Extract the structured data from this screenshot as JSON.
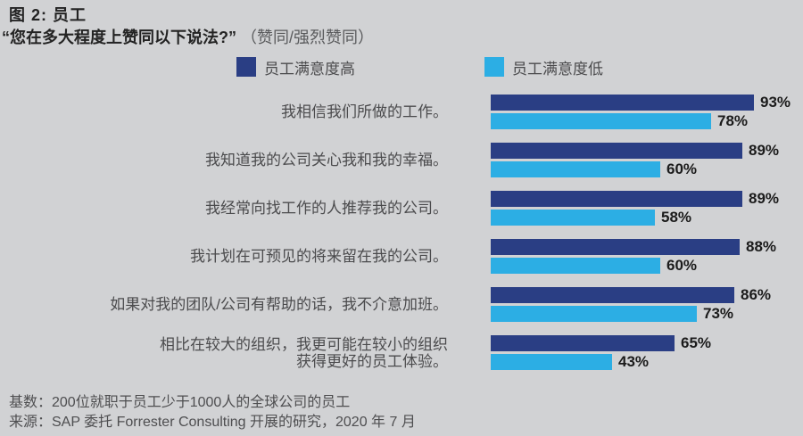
{
  "figure": {
    "title": "图 2: 员工",
    "subtitle_quote": "“您在多大程度上赞同以下说法?”",
    "subtitle_note": "（赞同/强烈赞同）"
  },
  "legend": [
    {
      "key": "high",
      "label": "员工满意度高",
      "color": "#2a3e84"
    },
    {
      "key": "low",
      "label": "员工满意度低",
      "color": "#2caee4"
    }
  ],
  "chart_data": {
    "type": "bar",
    "orientation": "horizontal",
    "title": "图 2: 员工",
    "subtitle": "“您在多大程度上赞同以下说法?” （赞同/强烈赞同）",
    "xlim": [
      0,
      100
    ],
    "value_suffix": "%",
    "grid": false,
    "legend_position": "top",
    "categories": [
      "我相信我们所做的工作。",
      "我知道我的公司关心我和我的幸福。",
      "我经常向找工作的人推荐我的公司。",
      "我计划在可预见的将来留在我的公司。",
      "如果对我的团队/公司有帮助的话，我不介意加班。",
      "相比在较大的组织，我更可能在较小的组织\n获得更好的员工体验。"
    ],
    "series": [
      {
        "key": "high",
        "name": "员工满意度高",
        "color": "#2a3e84",
        "values": [
          93,
          89,
          89,
          88,
          86,
          65
        ]
      },
      {
        "key": "low",
        "name": "员工满意度低",
        "color": "#2caee4",
        "values": [
          78,
          60,
          58,
          60,
          73,
          43
        ]
      }
    ]
  },
  "footer": {
    "base": "基数：200位就职于员工少于1000人的全球公司的员工",
    "source": "来源：SAP 委托 Forrester Consulting 开展的研究，2020 年 7 月"
  },
  "colors": {
    "background": "#d1d2d4",
    "bar_high": "#2a3e84",
    "bar_low": "#2caee4",
    "title_text": "#232323",
    "label_text": "#4b4b4d",
    "value_text": "#1b1b1b"
  }
}
